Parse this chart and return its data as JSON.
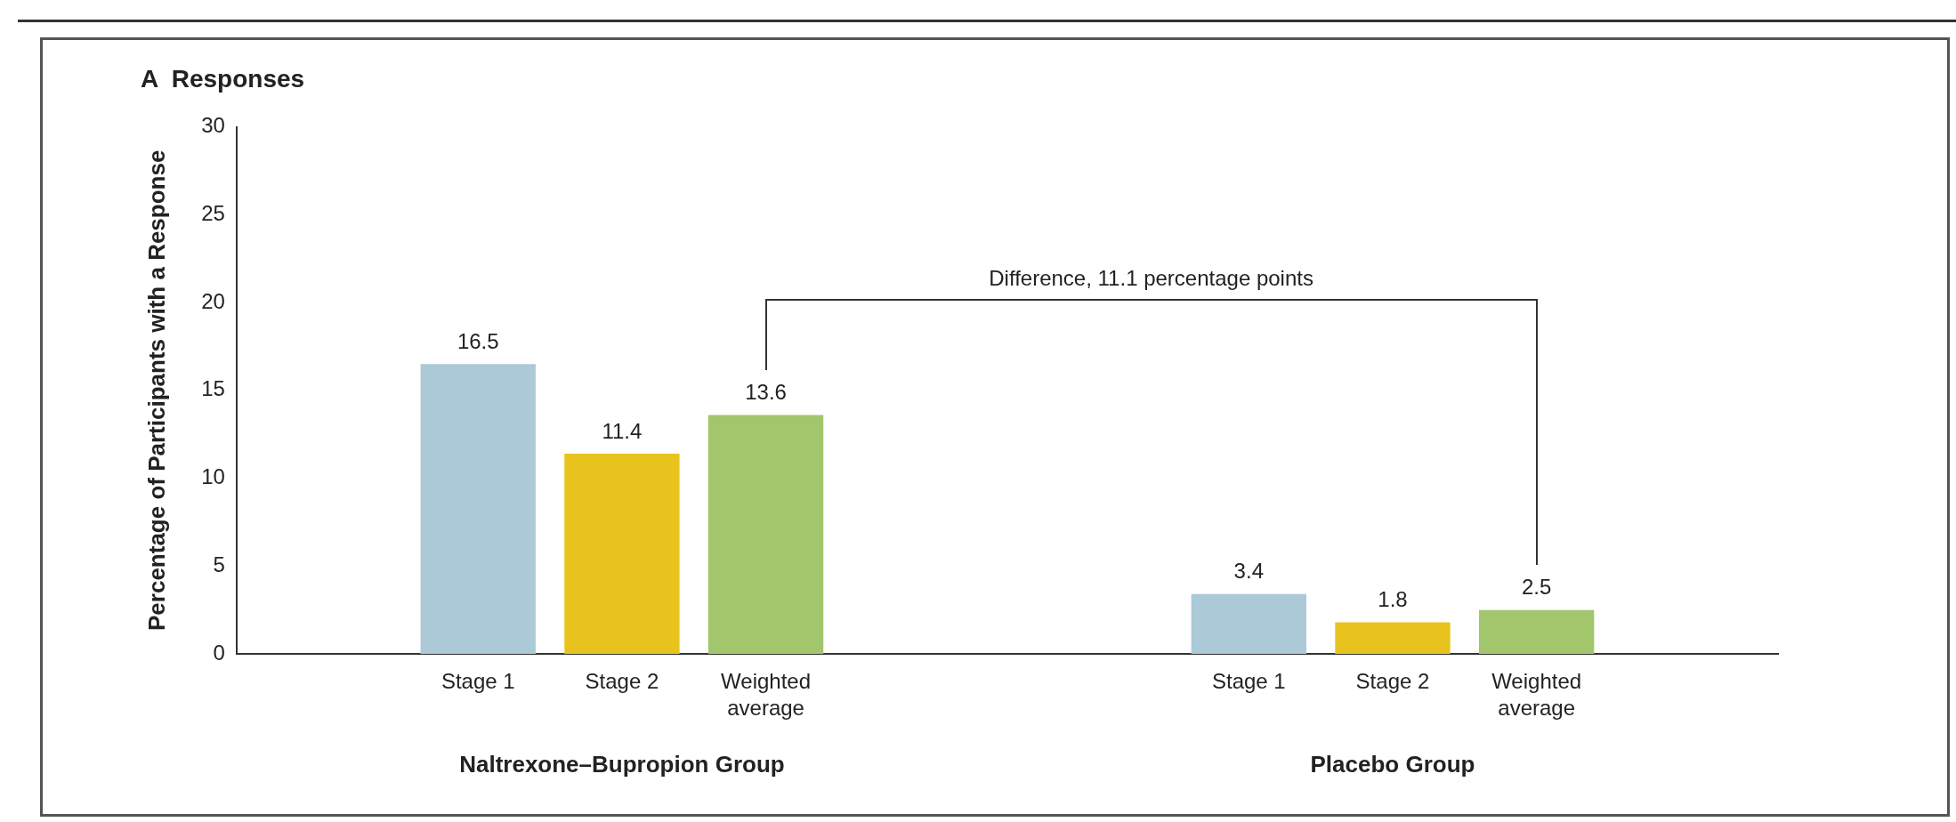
{
  "chart_data": {
    "type": "bar",
    "title": "A  Responses",
    "ylabel": "Percentage of Participants with a Response",
    "categories": [
      "Naltrexone–Bupropion Group",
      "Placebo Group"
    ],
    "series": [
      {
        "name": "Stage 1",
        "color": "#abc9d7",
        "values": [
          16.5,
          3.4
        ]
      },
      {
        "name": "Stage 2",
        "color": "#e8c31d",
        "values": [
          11.4,
          1.8
        ]
      },
      {
        "name": "Weighted average",
        "color": "#a1c66b",
        "values": [
          13.6,
          2.5
        ]
      }
    ],
    "ylim": [
      0,
      30
    ],
    "yticks": [
      0,
      5,
      10,
      15,
      20,
      25,
      30
    ],
    "grid": false,
    "legend": false,
    "data_labels": true,
    "annotations": [
      "Difference, 11.1 percentage points"
    ]
  }
}
